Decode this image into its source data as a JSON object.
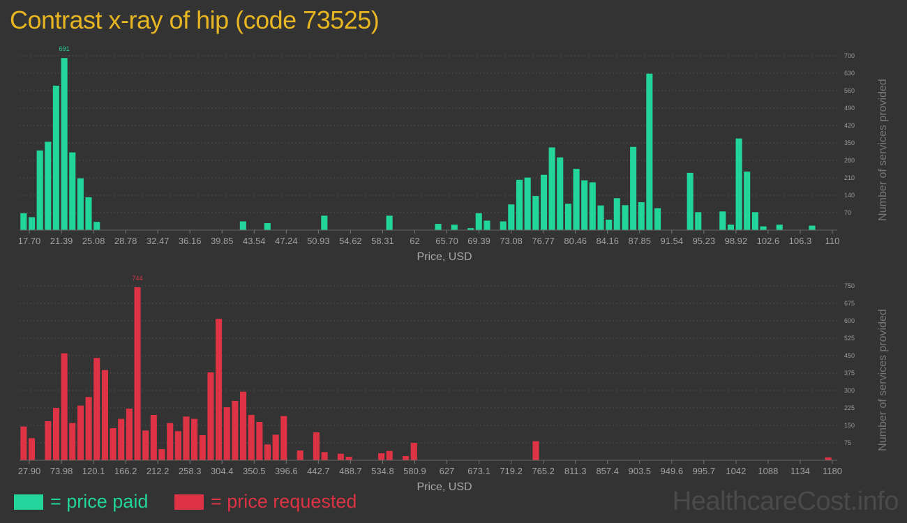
{
  "title": "Contrast x-ray of hip (code 73525)",
  "legend": {
    "paid_label": "= price paid",
    "requested_label": "= price requested",
    "paid_color": "#22d59a",
    "requested_color": "#dd3344"
  },
  "watermark": "HealthcareCost.info",
  "chart_data": [
    {
      "type": "bar",
      "xlabel": "Price, USD",
      "ylabel": "Number of services provided",
      "color": "#22d59a",
      "ylim": [
        0,
        700
      ],
      "yticks": [
        70,
        140,
        210,
        280,
        350,
        420,
        490,
        560,
        630,
        700
      ],
      "xlim": [
        17.7,
        110
      ],
      "xtick_labels": [
        "17.70",
        "21.39",
        "25.08",
        "28.78",
        "32.47",
        "36.16",
        "39.85",
        "43.54",
        "47.24",
        "50.93",
        "54.62",
        "58.31",
        "62",
        "65.70",
        "69.39",
        "73.08",
        "76.77",
        "80.46",
        "84.16",
        "87.85",
        "91.54",
        "95.23",
        "98.92",
        "102.6",
        "106.3",
        "110"
      ],
      "peak_label": "691",
      "bin_width": 0.923,
      "x": [
        18.16,
        19.09,
        20.01,
        20.93,
        21.85,
        22.78,
        23.7,
        24.62,
        25.54,
        26.47,
        43.08,
        45.85,
        52.31,
        55.08,
        59.7,
        65.24,
        67.08,
        68.93,
        69.85,
        70.78,
        72.62,
        73.54,
        74.47,
        75.39,
        76.31,
        77.24,
        78.16,
        79.08,
        80.01,
        80.93,
        81.85,
        82.77,
        83.7,
        84.62,
        85.54,
        86.47,
        87.39,
        88.31,
        89.23,
        90.16,
        93.85,
        94.77,
        97.54,
        98.47,
        99.39,
        100.31,
        101.24,
        102.16,
        104.0,
        107.7
      ],
      "values": [
        68,
        52,
        320,
        355,
        580,
        691,
        312,
        208,
        132,
        33,
        35,
        28,
        58,
        0,
        58,
        25,
        22,
        8,
        68,
        38,
        35,
        103,
        202,
        211,
        137,
        222,
        332,
        292,
        106,
        246,
        200,
        192,
        99,
        42,
        128,
        100,
        334,
        112,
        628,
        88,
        230,
        72,
        75,
        22,
        368,
        235,
        72,
        15,
        22,
        18
      ]
    },
    {
      "type": "bar",
      "xlabel": "Price, USD",
      "ylabel": "Number of services provided",
      "color": "#dd3344",
      "ylim": [
        0,
        750
      ],
      "yticks": [
        75,
        150,
        225,
        300,
        375,
        450,
        525,
        600,
        675,
        750
      ],
      "xlim": [
        27.9,
        1180
      ],
      "xtick_labels": [
        "27.90",
        "73.98",
        "120.1",
        "166.2",
        "212.2",
        "258.3",
        "304.4",
        "350.5",
        "396.6",
        "442.7",
        "488.7",
        "534.8",
        "580.9",
        "627",
        "673.1",
        "719.2",
        "765.2",
        "811.3",
        "857.4",
        "903.5",
        "949.6",
        "995.7",
        "1042",
        "1088",
        "1134",
        "1180"
      ],
      "peak_label": "744",
      "bin_width": 11.52,
      "x": [
        33.7,
        45.2,
        68.3,
        79.8,
        91.3,
        102.8,
        114.4,
        125.9,
        137.4,
        149.0,
        160.5,
        172.0,
        183.5,
        195.1,
        206.6,
        218.1,
        229.6,
        241.2,
        252.7,
        264.2,
        275.7,
        287.3,
        298.8,
        310.3,
        321.8,
        333.4,
        344.9,
        356.4,
        368.0,
        379.5,
        391.0,
        402.5,
        425.6,
        448.6,
        460.2,
        483.2,
        494.7,
        540.8,
        552.3,
        575.4,
        586.9,
        759.7,
        1174.2
      ],
      "values": [
        145,
        95,
        168,
        225,
        460,
        160,
        235,
        272,
        440,
        388,
        138,
        178,
        222,
        744,
        128,
        195,
        48,
        160,
        125,
        188,
        178,
        108,
        378,
        608,
        228,
        255,
        295,
        195,
        165,
        68,
        110,
        190,
        42,
        120,
        35,
        28,
        15,
        30,
        40,
        18,
        75,
        82,
        12
      ]
    }
  ]
}
